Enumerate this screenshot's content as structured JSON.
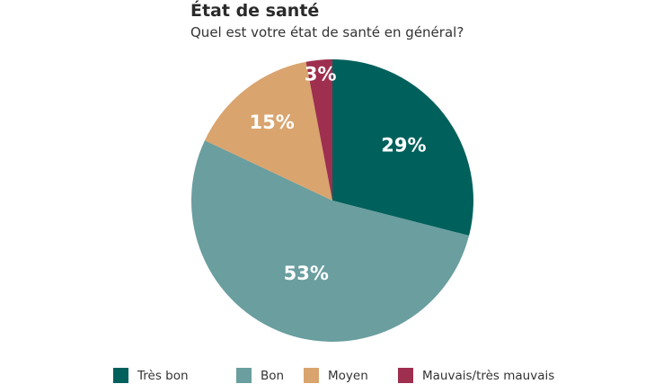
{
  "title": "État de santé",
  "subtitle": "Quel est votre état de santé en général?",
  "colors": {
    "tres_bon": "#00605c",
    "bon": "#6a9e9f",
    "moyen": "#d9a46e",
    "mauvais": "#9e2f4f"
  },
  "chart_data": {
    "type": "pie",
    "title": "État de santé",
    "subtitle": "Quel est votre état de santé en général?",
    "legend_position": "bottom",
    "slices": [
      {
        "label": "Très bon",
        "value": 29,
        "display": "29%",
        "color": "#00605c"
      },
      {
        "label": "Bon",
        "value": 53,
        "display": "53%",
        "color": "#6a9e9f"
      },
      {
        "label": "Moyen",
        "value": 15,
        "display": "15%",
        "color": "#d9a46e"
      },
      {
        "label": "Mauvais/très mauvais",
        "value": 3,
        "display": "3%",
        "color": "#9e2f4f"
      }
    ]
  }
}
